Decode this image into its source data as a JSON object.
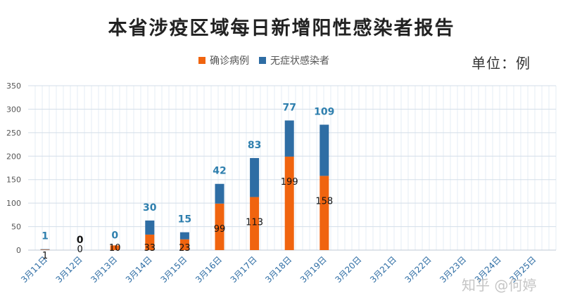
{
  "chart_data": {
    "type": "bar",
    "stacked": true,
    "title": "本省涉疫区域每日新增阳性感染者报告",
    "unit_label": "单位：例",
    "categories": [
      "3月11日",
      "3月12日",
      "3月13日",
      "3月14日",
      "3月15日",
      "3月16日",
      "3月17日",
      "3月18日",
      "3月19日",
      "3月20日",
      "3月21日",
      "3月22日",
      "3月23日",
      "3月24日",
      "3月25日"
    ],
    "series": [
      {
        "name": "确诊病例",
        "color": "#f0640f",
        "values": [
          1,
          0,
          10,
          33,
          23,
          99,
          113,
          199,
          158,
          null,
          null,
          null,
          null,
          null,
          null
        ]
      },
      {
        "name": "无症状感染者",
        "color": "#2e6da4",
        "values": [
          1,
          0,
          0,
          30,
          15,
          42,
          83,
          77,
          109,
          null,
          null,
          null,
          null,
          null,
          null
        ]
      }
    ],
    "ylim": [
      0,
      350
    ],
    "yticks": [
      0,
      50,
      100,
      150,
      200,
      250,
      300,
      350
    ],
    "grid": true,
    "legend_position": "top"
  },
  "watermark": "知乎 @何婷"
}
